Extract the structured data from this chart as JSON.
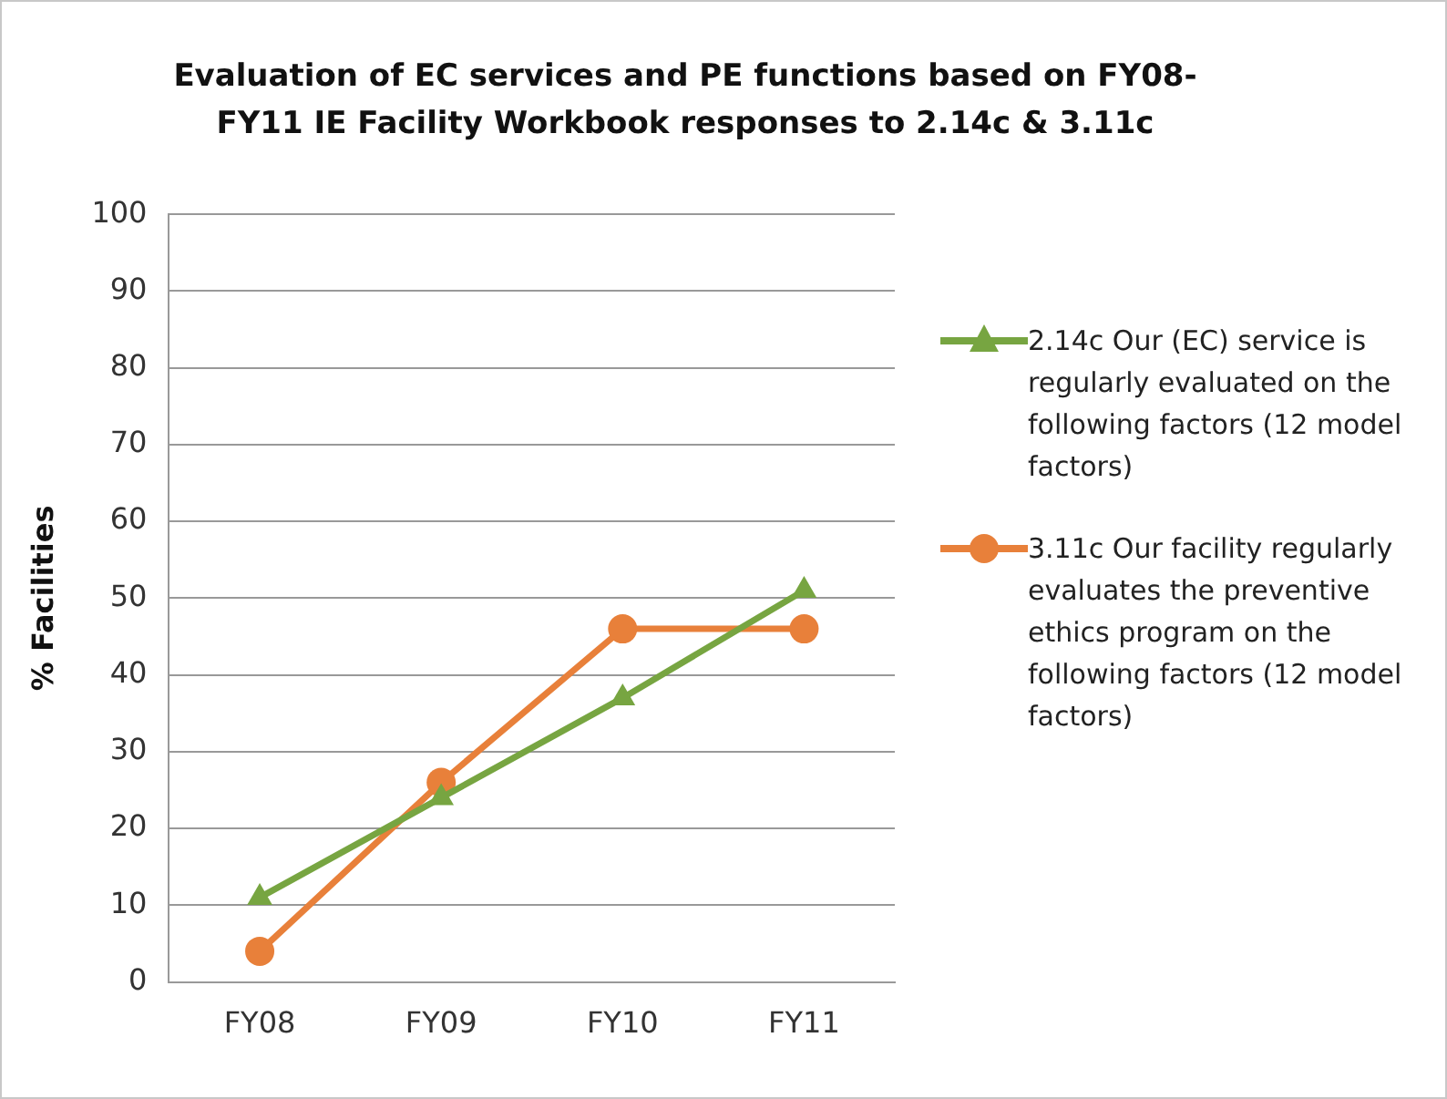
{
  "chart_data": {
    "type": "line",
    "title": "Evaluation of EC services and PE functions based on FY08-FY11 IE Facility Workbook responses to 2.14c & 3.11c",
    "ylabel": "% Facilities",
    "categories": [
      "FY08",
      "FY09",
      "FY10",
      "FY11"
    ],
    "series": [
      {
        "name": "2.14c Our (EC) service is regularly evaluated on the following factors (12 model factors)",
        "color": "#77a541",
        "values": [
          11,
          24,
          37,
          51
        ],
        "marker": "triangle"
      },
      {
        "name": "3.11c Our facility regularly evaluates the preventive ethics program on the following factors (12 model factors)",
        "color": "#e8803a",
        "values": [
          4,
          26,
          46,
          46
        ],
        "marker": "circle"
      }
    ],
    "ylim": [
      0,
      100
    ],
    "yticks": [
      0,
      10,
      20,
      30,
      40,
      50,
      60,
      70,
      80,
      90,
      100
    ],
    "grid": "y",
    "legend": "right",
    "line_style": "solid"
  }
}
